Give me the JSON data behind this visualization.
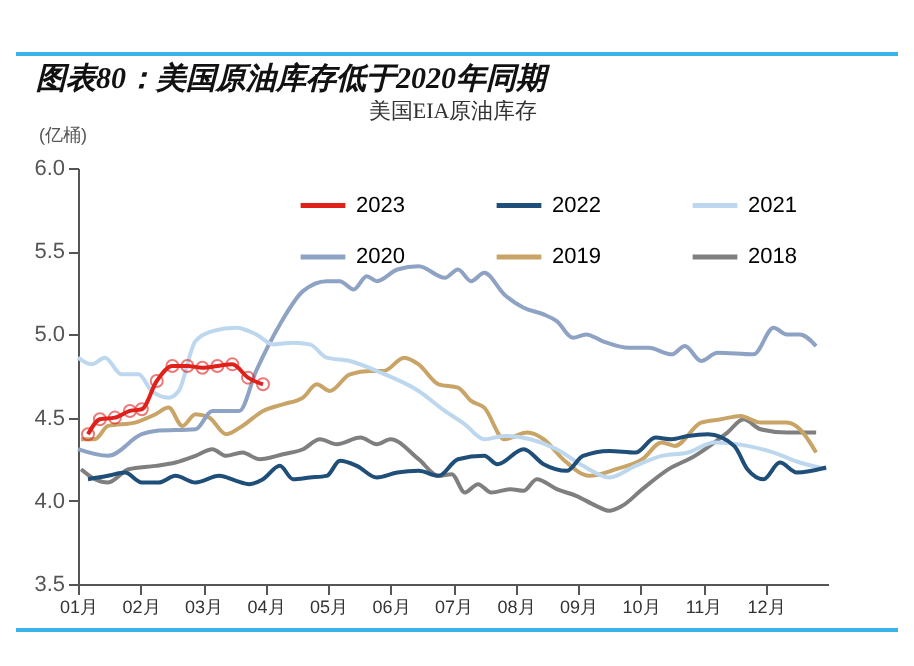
{
  "chart_data": {
    "type": "line",
    "title": "图表80：美国原油库存低于2020年同期",
    "subtitle": "美国EIA原油库存",
    "ylabel": "(亿桶)",
    "xlim": [
      1,
      13
    ],
    "xticks": [
      {
        "value": 1,
        "label": "01月"
      },
      {
        "value": 2,
        "label": "02月"
      },
      {
        "value": 3,
        "label": "03月"
      },
      {
        "value": 4,
        "label": "04月"
      },
      {
        "value": 5,
        "label": "05月"
      },
      {
        "value": 6,
        "label": "06月"
      },
      {
        "value": 7,
        "label": "07月"
      },
      {
        "value": 8,
        "label": "08月"
      },
      {
        "value": 9,
        "label": "09月"
      },
      {
        "value": 10,
        "label": "10月"
      },
      {
        "value": 11,
        "label": "11月"
      },
      {
        "value": 12,
        "label": "12月"
      }
    ],
    "ylim": [
      3.5,
      6.0
    ],
    "yticks": [
      {
        "value": 3.5,
        "label": "3.5"
      },
      {
        "value": 4,
        "label": "4.0"
      },
      {
        "value": 4.5,
        "label": "4.5"
      },
      {
        "value": 5,
        "label": "5.0"
      },
      {
        "value": 5.5,
        "label": "5.5"
      },
      {
        "value": 6,
        "label": "6.0"
      }
    ],
    "grid": false,
    "legend": "top",
    "series": [
      {
        "name": "2023",
        "color": "#e0201b",
        "marker": "circle",
        "x": [
          1.16,
          1.35,
          1.59,
          1.83,
          2.02,
          2.26,
          2.51,
          2.75,
          2.99,
          3.23,
          3.47,
          3.72,
          3.96
        ],
        "values": [
          4.4,
          4.49,
          4.5,
          4.54,
          4.55,
          4.72,
          4.81,
          4.81,
          4.8,
          4.81,
          4.82,
          4.74,
          4.7
        ]
      },
      {
        "name": "2022",
        "color": "#1f4e79",
        "x": [
          1.16,
          1.48,
          1.75,
          2.02,
          2.29,
          2.56,
          2.88,
          3.26,
          3.53,
          3.74,
          3.96,
          4.23,
          4.44,
          4.71,
          4.98,
          5.19,
          5.46,
          5.78,
          6.11,
          6.45,
          6.77,
          7.08,
          7.5,
          7.71,
          8.13,
          8.45,
          8.82,
          9.08,
          9.5,
          9.92,
          10.24,
          10.5,
          10.76,
          11.08,
          11.5,
          11.71,
          11.97,
          12.23,
          12.5,
          12.97
        ],
        "values": [
          4.13,
          4.15,
          4.17,
          4.11,
          4.11,
          4.15,
          4.11,
          4.15,
          4.12,
          4.1,
          4.13,
          4.21,
          4.13,
          4.14,
          4.15,
          4.24,
          4.21,
          4.14,
          4.17,
          4.18,
          4.15,
          4.25,
          4.27,
          4.22,
          4.31,
          4.22,
          4.18,
          4.27,
          4.3,
          4.29,
          4.38,
          4.37,
          4.39,
          4.4,
          4.33,
          4.19,
          4.13,
          4.23,
          4.17,
          4.2
        ]
      },
      {
        "name": "2021",
        "color": "#bdd7ee",
        "x": [
          1.0,
          1.22,
          1.43,
          1.7,
          1.97,
          2.18,
          2.45,
          2.61,
          2.88,
          3.15,
          3.53,
          3.85,
          4.12,
          4.44,
          4.71,
          4.98,
          5.35,
          5.78,
          6.45,
          6.87,
          7.19,
          7.5,
          7.82,
          8.24,
          8.66,
          9.08,
          9.5,
          9.92,
          10.34,
          10.76,
          11.18,
          11.71,
          12.13,
          12.55,
          12.97
        ],
        "values": [
          4.86,
          4.82,
          4.86,
          4.76,
          4.76,
          4.66,
          4.62,
          4.66,
          4.96,
          5.02,
          5.04,
          5.0,
          4.94,
          4.95,
          4.94,
          4.86,
          4.84,
          4.78,
          4.66,
          4.54,
          4.46,
          4.37,
          4.39,
          4.37,
          4.31,
          4.21,
          4.14,
          4.21,
          4.27,
          4.29,
          4.35,
          4.33,
          4.29,
          4.23,
          4.19
        ]
      },
      {
        "name": "2020",
        "color": "#8ea2c4",
        "x": [
          1.0,
          1.48,
          2.02,
          2.24,
          2.88,
          3.15,
          3.58,
          3.85,
          4.23,
          4.6,
          4.98,
          5.19,
          5.41,
          5.62,
          5.78,
          6.11,
          6.45,
          6.87,
          7.08,
          7.29,
          7.5,
          7.82,
          8.13,
          8.45,
          8.66,
          8.92,
          9.13,
          9.39,
          9.82,
          10.13,
          10.5,
          10.71,
          10.97,
          11.23,
          11.81,
          12.13,
          12.34,
          12.55,
          12.81
        ],
        "values": [
          4.31,
          4.27,
          4.4,
          4.42,
          4.43,
          4.54,
          4.54,
          4.78,
          5.06,
          5.26,
          5.32,
          5.32,
          5.27,
          5.35,
          5.32,
          5.39,
          5.41,
          5.34,
          5.39,
          5.32,
          5.37,
          5.24,
          5.16,
          5.12,
          5.08,
          4.98,
          5.0,
          4.96,
          4.92,
          4.92,
          4.88,
          4.93,
          4.84,
          4.89,
          4.88,
          5.04,
          5.0,
          5.0,
          4.93
        ]
      },
      {
        "name": "2019",
        "color": "#c9a467",
        "x": [
          1.05,
          1.27,
          1.48,
          1.91,
          2.24,
          2.45,
          2.67,
          2.88,
          3.1,
          3.37,
          3.63,
          3.96,
          4.28,
          4.6,
          4.82,
          5.03,
          5.35,
          5.68,
          5.89,
          6.22,
          6.45,
          6.77,
          7.08,
          7.29,
          7.5,
          7.82,
          8.19,
          8.45,
          8.76,
          9.18,
          9.61,
          10.03,
          10.34,
          10.55,
          10.97,
          11.29,
          11.6,
          11.92,
          12.34,
          12.55,
          12.81
        ],
        "values": [
          4.37,
          4.37,
          4.45,
          4.47,
          4.52,
          4.56,
          4.45,
          4.52,
          4.5,
          4.4,
          4.45,
          4.54,
          4.58,
          4.62,
          4.7,
          4.66,
          4.76,
          4.78,
          4.78,
          4.86,
          4.82,
          4.7,
          4.68,
          4.6,
          4.56,
          4.37,
          4.41,
          4.37,
          4.25,
          4.15,
          4.19,
          4.25,
          4.35,
          4.33,
          4.47,
          4.49,
          4.51,
          4.47,
          4.47,
          4.43,
          4.29
        ]
      },
      {
        "name": "2018",
        "color": "#7f7f7f",
        "x": [
          1.05,
          1.27,
          1.48,
          1.81,
          2.24,
          2.56,
          2.88,
          3.15,
          3.37,
          3.63,
          3.9,
          4.28,
          4.6,
          4.87,
          5.14,
          5.52,
          5.78,
          6.0,
          6.45,
          6.77,
          6.98,
          7.19,
          7.4,
          7.61,
          7.92,
          8.13,
          8.34,
          8.66,
          8.97,
          9.29,
          9.5,
          9.71,
          10.03,
          10.45,
          10.87,
          11.18,
          11.39,
          11.65,
          11.92,
          12.34,
          12.81
        ],
        "values": [
          4.19,
          4.13,
          4.11,
          4.19,
          4.21,
          4.23,
          4.27,
          4.31,
          4.27,
          4.29,
          4.25,
          4.28,
          4.31,
          4.37,
          4.34,
          4.38,
          4.34,
          4.37,
          4.25,
          4.15,
          4.16,
          4.05,
          4.1,
          4.05,
          4.07,
          4.06,
          4.13,
          4.07,
          4.03,
          3.97,
          3.94,
          3.97,
          4.07,
          4.19,
          4.27,
          4.35,
          4.41,
          4.49,
          4.43,
          4.41,
          4.41
        ]
      }
    ]
  }
}
